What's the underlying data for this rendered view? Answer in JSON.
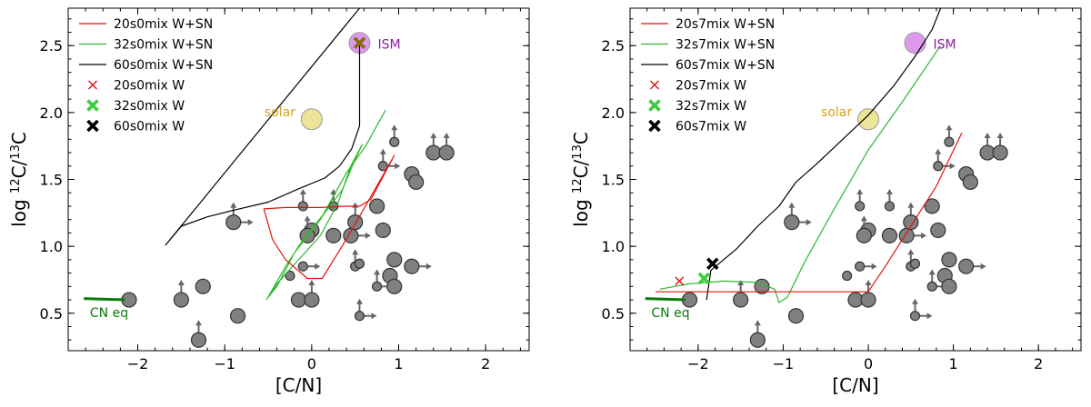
{
  "chart_data": [
    {
      "type": "scatter",
      "panel": "left",
      "xlabel": "[C/N]",
      "ylabel_parts": [
        "log ",
        "12",
        "C/",
        "13",
        "C"
      ],
      "xlim": [
        -2.8,
        2.5
      ],
      "ylim": [
        0.22,
        2.78
      ],
      "xticks": [
        -2,
        -1,
        0,
        1,
        2
      ],
      "yticks": [
        0.5,
        1.0,
        1.5,
        2.0,
        2.5
      ],
      "xtick_labels": [
        "−2",
        "−1",
        "0",
        "1",
        "2"
      ],
      "ytick_labels": [
        "0.5",
        "1.0",
        "1.5",
        "2.0",
        "2.5"
      ],
      "legend": [
        {
          "label": "20s0mix W+SN",
          "kind": "line",
          "color": "#e3120b"
        },
        {
          "label": "32s0mix W+SN",
          "kind": "line",
          "color": "#2db82d"
        },
        {
          "label": "60s0mix W+SN",
          "kind": "line",
          "color": "#000000"
        },
        {
          "label": "20s0mix W",
          "kind": "x",
          "color": "#e3120b"
        },
        {
          "label": "32s0mix W",
          "kind": "X",
          "color": "#3dcc3d"
        },
        {
          "label": "60s0mix W",
          "kind": "X",
          "color": "#000000"
        }
      ],
      "series": [
        {
          "name": "60s0mix W+SN",
          "color": "#000000",
          "points": [
            [
              0.55,
              2.78
            ],
            [
              -1.68,
              1.01
            ],
            [
              -1.5,
              1.15
            ],
            [
              -1.2,
              1.22
            ],
            [
              -0.9,
              1.27
            ],
            [
              -0.5,
              1.33
            ],
            [
              -0.15,
              1.43
            ],
            [
              0.15,
              1.51
            ],
            [
              0.32,
              1.6
            ],
            [
              0.46,
              1.73
            ],
            [
              0.55,
              1.9
            ],
            [
              0.55,
              2.52
            ]
          ]
        },
        {
          "name": "32s0mix W+SN",
          "color": "#2db82d",
          "points": [
            [
              -0.52,
              0.6
            ],
            [
              -0.45,
              0.68
            ],
            [
              -0.3,
              0.85
            ],
            [
              -0.1,
              1.05
            ],
            [
              0.15,
              1.25
            ],
            [
              0.35,
              1.42
            ],
            [
              0.48,
              1.62
            ],
            [
              0.58,
              1.76
            ],
            [
              0.45,
              1.6
            ],
            [
              0.3,
              1.32
            ],
            [
              0.1,
              1.08
            ],
            [
              -0.15,
              0.9
            ],
            [
              -0.4,
              0.72
            ],
            [
              -0.5,
              0.62
            ],
            [
              -0.4,
              0.7
            ],
            [
              -0.2,
              0.95
            ],
            [
              0.1,
              1.2
            ],
            [
              0.4,
              1.55
            ],
            [
              0.62,
              1.75
            ],
            [
              0.85,
              2.02
            ]
          ]
        },
        {
          "name": "20s0mix W+SN",
          "color": "#e3120b",
          "points": [
            [
              -0.55,
              1.28
            ],
            [
              -0.3,
              1.29
            ],
            [
              0.1,
              1.29
            ],
            [
              0.4,
              1.3
            ],
            [
              0.55,
              1.3
            ],
            [
              0.68,
              1.35
            ],
            [
              0.95,
              1.68
            ],
            [
              0.6,
              1.28
            ],
            [
              0.35,
              1.0
            ],
            [
              0.12,
              0.76
            ],
            [
              -0.05,
              0.76
            ],
            [
              -0.3,
              0.9
            ],
            [
              -0.45,
              1.05
            ],
            [
              -0.55,
              1.28
            ]
          ]
        },
        {
          "name": "CN eq",
          "color": "#0a7a0a",
          "points": [
            [
              -2.62,
              0.61
            ],
            [
              -2.15,
              0.6
            ]
          ]
        }
      ],
      "markers": [
        {
          "name": "20s0mix W",
          "x": 0.55,
          "y": 2.52,
          "kind": "x",
          "color": "#e3120b"
        },
        {
          "name": "32s0mix W",
          "x": 0.55,
          "y": 2.52,
          "kind": "X",
          "color": "#3dcc3d"
        },
        {
          "name": "60s0mix W",
          "x": 0.55,
          "y": 2.52,
          "kind": "X",
          "color": "#8b6a10"
        }
      ],
      "reference_points": [
        {
          "label": "ISM",
          "x": 0.55,
          "y": 2.52,
          "color": "#dd99ee",
          "label_color": "#8b1a9b"
        },
        {
          "label": "solar",
          "x": 0.0,
          "y": 1.95,
          "color": "#ece597",
          "label_color": "#d9a21a"
        }
      ],
      "annotations": [
        {
          "text": "CN eq",
          "color": "#0a7a0a"
        }
      ],
      "stars": [
        {
          "x": -2.1,
          "y": 0.6,
          "r": 8,
          "up": false,
          "right": false
        },
        {
          "x": -1.5,
          "y": 0.6,
          "r": 8,
          "up": true,
          "right": false
        },
        {
          "x": -1.25,
          "y": 0.7,
          "r": 8,
          "up": false,
          "right": false
        },
        {
          "x": -1.3,
          "y": 0.3,
          "r": 8,
          "up": true,
          "right": false
        },
        {
          "x": -0.85,
          "y": 0.48,
          "r": 8,
          "up": false,
          "right": false
        },
        {
          "x": -0.9,
          "y": 1.18,
          "r": 8,
          "up": true,
          "right": true
        },
        {
          "x": -0.15,
          "y": 0.6,
          "r": 8,
          "up": false,
          "right": false
        },
        {
          "x": 0.0,
          "y": 0.6,
          "r": 8,
          "up": true,
          "right": false
        },
        {
          "x": -0.25,
          "y": 0.78,
          "r": 5,
          "up": false,
          "right": false
        },
        {
          "x": -0.1,
          "y": 0.85,
          "r": 5,
          "up": false,
          "right": true
        },
        {
          "x": -0.1,
          "y": 1.3,
          "r": 5,
          "up": true,
          "right": false
        },
        {
          "x": 0.0,
          "y": 1.12,
          "r": 8,
          "up": false,
          "right": false
        },
        {
          "x": -0.05,
          "y": 1.08,
          "r": 8,
          "up": true,
          "right": false
        },
        {
          "x": 0.25,
          "y": 1.08,
          "r": 8,
          "up": false,
          "right": false
        },
        {
          "x": 0.25,
          "y": 1.3,
          "r": 5,
          "up": true,
          "right": false
        },
        {
          "x": 0.45,
          "y": 1.08,
          "r": 8,
          "up": false,
          "right": true
        },
        {
          "x": 0.5,
          "y": 1.18,
          "r": 8,
          "up": true,
          "right": false
        },
        {
          "x": 0.5,
          "y": 0.85,
          "r": 5,
          "up": true,
          "right": false
        },
        {
          "x": 0.55,
          "y": 0.48,
          "r": 5,
          "up": true,
          "right": true
        },
        {
          "x": 0.55,
          "y": 0.87,
          "r": 5,
          "up": false,
          "right": false
        },
        {
          "x": 0.75,
          "y": 1.3,
          "r": 8,
          "up": false,
          "right": false
        },
        {
          "x": 0.82,
          "y": 1.12,
          "r": 8,
          "up": false,
          "right": false
        },
        {
          "x": 0.82,
          "y": 1.6,
          "r": 5,
          "up": true,
          "right": true
        },
        {
          "x": 0.75,
          "y": 0.7,
          "r": 5,
          "up": true,
          "right": true
        },
        {
          "x": 0.9,
          "y": 0.78,
          "r": 8,
          "up": false,
          "right": false
        },
        {
          "x": 0.95,
          "y": 0.7,
          "r": 8,
          "up": false,
          "right": false
        },
        {
          "x": 0.95,
          "y": 0.9,
          "r": 8,
          "up": false,
          "right": false
        },
        {
          "x": 0.95,
          "y": 1.78,
          "r": 5,
          "up": true,
          "right": false
        },
        {
          "x": 1.15,
          "y": 0.85,
          "r": 8,
          "up": false,
          "right": true
        },
        {
          "x": 1.15,
          "y": 1.54,
          "r": 8,
          "up": false,
          "right": false
        },
        {
          "x": 1.2,
          "y": 1.48,
          "r": 8,
          "up": false,
          "right": false
        },
        {
          "x": 1.4,
          "y": 1.7,
          "r": 8,
          "up": true,
          "right": true
        },
        {
          "x": 1.55,
          "y": 1.7,
          "r": 8,
          "up": true,
          "right": false
        }
      ]
    },
    {
      "type": "scatter",
      "panel": "right",
      "xlabel": "[C/N]",
      "ylabel_parts": [
        "log ",
        "12",
        "C/",
        "13",
        "C"
      ],
      "xlim": [
        -2.8,
        2.5
      ],
      "ylim": [
        0.22,
        2.78
      ],
      "xticks": [
        -2,
        -1,
        0,
        1,
        2
      ],
      "yticks": [
        0.5,
        1.0,
        1.5,
        2.0,
        2.5
      ],
      "xtick_labels": [
        "−2",
        "−1",
        "0",
        "1",
        "2"
      ],
      "ytick_labels": [
        "0.5",
        "1.0",
        "1.5",
        "2.0",
        "2.5"
      ],
      "legend": [
        {
          "label": "20s7mix W+SN",
          "kind": "line",
          "color": "#e3120b"
        },
        {
          "label": "32s7mix W+SN",
          "kind": "line",
          "color": "#2db82d"
        },
        {
          "label": "60s7mix W+SN",
          "kind": "line",
          "color": "#000000"
        },
        {
          "label": "20s7mix W",
          "kind": "x",
          "color": "#e3120b"
        },
        {
          "label": "32s7mix W",
          "kind": "X",
          "color": "#3dcc3d"
        },
        {
          "label": "60s7mix W",
          "kind": "X",
          "color": "#000000"
        }
      ],
      "series": [
        {
          "name": "60s7mix W+SN",
          "color": "#000000",
          "points": [
            [
              -1.9,
              0.6
            ],
            [
              -1.85,
              0.82
            ],
            [
              -1.55,
              0.98
            ],
            [
              -1.3,
              1.15
            ],
            [
              -1.05,
              1.3
            ],
            [
              -0.85,
              1.48
            ],
            [
              -0.6,
              1.62
            ],
            [
              -0.3,
              1.8
            ],
            [
              0.0,
              1.98
            ],
            [
              0.3,
              2.2
            ],
            [
              0.55,
              2.42
            ],
            [
              0.75,
              2.62
            ],
            [
              0.85,
              2.78
            ]
          ]
        },
        {
          "name": "32s7mix W+SN",
          "color": "#2db82d",
          "points": [
            [
              -2.45,
              0.68
            ],
            [
              -2.1,
              0.72
            ],
            [
              -1.7,
              0.74
            ],
            [
              -1.3,
              0.73
            ],
            [
              -1.1,
              0.68
            ],
            [
              -1.05,
              0.58
            ],
            [
              -0.95,
              0.62
            ],
            [
              -0.75,
              0.88
            ],
            [
              -0.4,
              1.28
            ],
            [
              0.0,
              1.72
            ],
            [
              0.4,
              2.08
            ],
            [
              0.85,
              2.5
            ]
          ]
        },
        {
          "name": "20s7mix W+SN",
          "color": "#e3120b",
          "points": [
            [
              -2.5,
              0.66
            ],
            [
              -1.5,
              0.66
            ],
            [
              -0.5,
              0.66
            ],
            [
              0.0,
              0.66
            ],
            [
              0.2,
              0.85
            ],
            [
              0.5,
              1.15
            ],
            [
              0.8,
              1.45
            ],
            [
              1.1,
              1.85
            ]
          ]
        },
        {
          "name": "CN eq",
          "color": "#0a7a0a",
          "points": [
            [
              -2.62,
              0.61
            ],
            [
              -2.15,
              0.6
            ]
          ]
        }
      ],
      "markers": [
        {
          "name": "20s7mix W",
          "x": -2.22,
          "y": 0.74,
          "kind": "x",
          "color": "#e3120b"
        },
        {
          "name": "32s7mix W",
          "x": -1.93,
          "y": 0.76,
          "kind": "X",
          "color": "#3dcc3d"
        },
        {
          "name": "60s7mix W",
          "x": -1.83,
          "y": 0.87,
          "kind": "X",
          "color": "#000000"
        }
      ],
      "reference_points": [
        {
          "label": "ISM",
          "x": 0.55,
          "y": 2.52,
          "color": "#dd99ee",
          "label_color": "#8b1a9b"
        },
        {
          "label": "solar",
          "x": 0.0,
          "y": 1.95,
          "color": "#ece597",
          "label_color": "#d9a21a"
        }
      ],
      "annotations": [
        {
          "text": "CN eq",
          "color": "#0a7a0a"
        }
      ],
      "stars": [
        {
          "x": -2.1,
          "y": 0.6,
          "r": 8,
          "up": false,
          "right": false
        },
        {
          "x": -1.5,
          "y": 0.6,
          "r": 8,
          "up": true,
          "right": false
        },
        {
          "x": -1.25,
          "y": 0.7,
          "r": 8,
          "up": false,
          "right": false
        },
        {
          "x": -1.3,
          "y": 0.3,
          "r": 8,
          "up": true,
          "right": false
        },
        {
          "x": -0.85,
          "y": 0.48,
          "r": 8,
          "up": false,
          "right": false
        },
        {
          "x": -0.9,
          "y": 1.18,
          "r": 8,
          "up": true,
          "right": true
        },
        {
          "x": -0.15,
          "y": 0.6,
          "r": 8,
          "up": false,
          "right": false
        },
        {
          "x": 0.0,
          "y": 0.6,
          "r": 8,
          "up": true,
          "right": false
        },
        {
          "x": -0.25,
          "y": 0.78,
          "r": 5,
          "up": false,
          "right": false
        },
        {
          "x": -0.1,
          "y": 0.85,
          "r": 5,
          "up": false,
          "right": true
        },
        {
          "x": -0.1,
          "y": 1.3,
          "r": 5,
          "up": true,
          "right": false
        },
        {
          "x": 0.0,
          "y": 1.12,
          "r": 8,
          "up": false,
          "right": false
        },
        {
          "x": -0.05,
          "y": 1.08,
          "r": 8,
          "up": true,
          "right": false
        },
        {
          "x": 0.25,
          "y": 1.08,
          "r": 8,
          "up": false,
          "right": false
        },
        {
          "x": 0.25,
          "y": 1.3,
          "r": 5,
          "up": true,
          "right": false
        },
        {
          "x": 0.45,
          "y": 1.08,
          "r": 8,
          "up": false,
          "right": true
        },
        {
          "x": 0.5,
          "y": 1.18,
          "r": 8,
          "up": true,
          "right": false
        },
        {
          "x": 0.5,
          "y": 0.85,
          "r": 5,
          "up": true,
          "right": false
        },
        {
          "x": 0.55,
          "y": 0.48,
          "r": 5,
          "up": true,
          "right": true
        },
        {
          "x": 0.55,
          "y": 0.87,
          "r": 5,
          "up": false,
          "right": false
        },
        {
          "x": 0.75,
          "y": 1.3,
          "r": 8,
          "up": false,
          "right": false
        },
        {
          "x": 0.82,
          "y": 1.12,
          "r": 8,
          "up": false,
          "right": false
        },
        {
          "x": 0.82,
          "y": 1.6,
          "r": 5,
          "up": true,
          "right": true
        },
        {
          "x": 0.75,
          "y": 0.7,
          "r": 5,
          "up": true,
          "right": true
        },
        {
          "x": 0.9,
          "y": 0.78,
          "r": 8,
          "up": false,
          "right": false
        },
        {
          "x": 0.95,
          "y": 0.7,
          "r": 8,
          "up": false,
          "right": false
        },
        {
          "x": 0.95,
          "y": 0.9,
          "r": 8,
          "up": false,
          "right": false
        },
        {
          "x": 0.95,
          "y": 1.78,
          "r": 5,
          "up": true,
          "right": false
        },
        {
          "x": 1.15,
          "y": 0.85,
          "r": 8,
          "up": false,
          "right": true
        },
        {
          "x": 1.15,
          "y": 1.54,
          "r": 8,
          "up": false,
          "right": false
        },
        {
          "x": 1.2,
          "y": 1.48,
          "r": 8,
          "up": false,
          "right": false
        },
        {
          "x": 1.4,
          "y": 1.7,
          "r": 8,
          "up": true,
          "right": true
        },
        {
          "x": 1.55,
          "y": 1.7,
          "r": 8,
          "up": true,
          "right": false
        }
      ]
    }
  ]
}
